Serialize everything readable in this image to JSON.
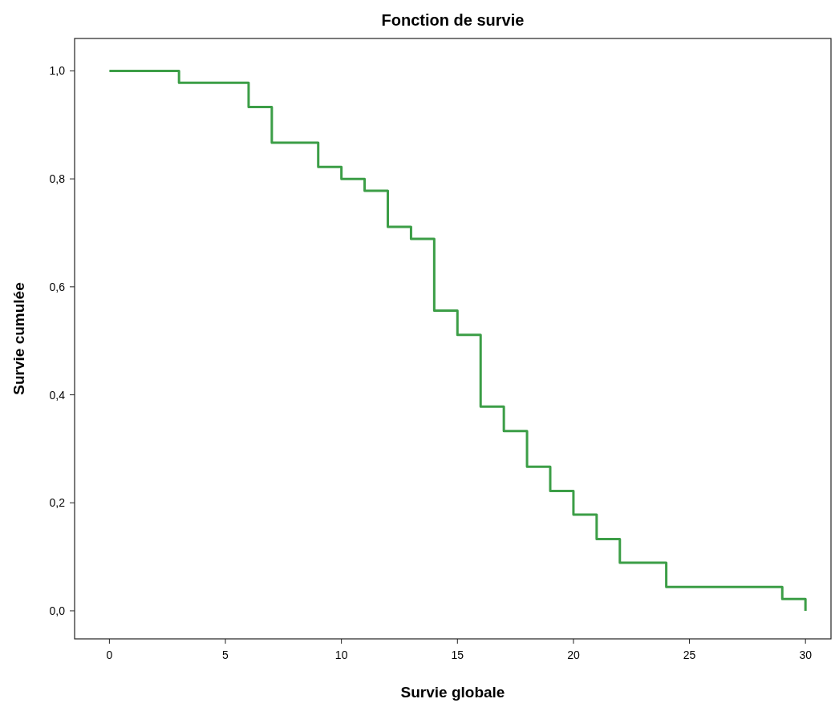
{
  "chart_data": {
    "type": "step",
    "title": "Fonction de survie",
    "xlabel": "Survie globale",
    "ylabel": "Survie cumulée",
    "x": [
      0,
      3,
      6,
      7,
      9,
      10,
      11,
      12,
      13,
      14,
      15,
      16,
      17,
      18,
      19,
      20,
      21,
      22,
      24,
      29,
      30
    ],
    "series": [
      {
        "color": "#3c9e47",
        "values": [
          1.0,
          0.978,
          0.933,
          0.867,
          0.822,
          0.8,
          0.778,
          0.711,
          0.689,
          0.556,
          0.511,
          0.378,
          0.333,
          0.267,
          0.222,
          0.178,
          0.133,
          0.089,
          0.044,
          0.022,
          0.0
        ]
      }
    ],
    "xlim": [
      -1.5,
      31.1
    ],
    "ylim": [
      -0.052,
      1.06
    ],
    "xticks": [
      0,
      5,
      10,
      15,
      20,
      25,
      30
    ],
    "yticks": [
      {
        "value": 0,
        "label": "0,0"
      },
      {
        "value": 0.2,
        "label": "0,2"
      },
      {
        "value": 0.4,
        "label": "0,4"
      },
      {
        "value": 0.6,
        "label": "0,6"
      },
      {
        "value": 0.8,
        "label": "0,8"
      },
      {
        "value": 1,
        "label": "1,0"
      }
    ],
    "grid": false,
    "marker": "none",
    "line_style": "solid"
  }
}
